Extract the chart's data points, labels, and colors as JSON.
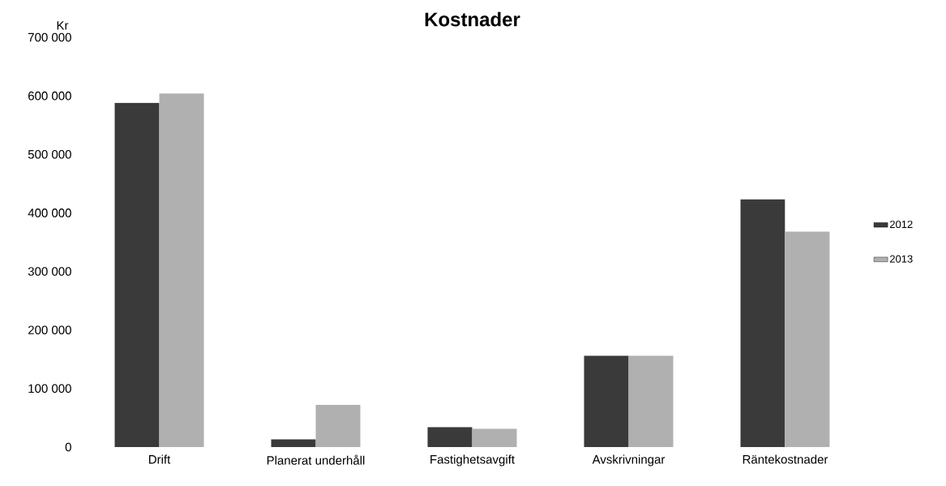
{
  "chart_data": {
    "type": "bar",
    "title": "Kostnader",
    "ylabel": "Kr",
    "categories": [
      "Drift",
      "Planerat underhåll",
      "Fastighetsavgift",
      "Avskrivningar",
      "Räntekostnader"
    ],
    "series": [
      {
        "name": "2012",
        "color": "#3a3a3a",
        "values": [
          588000,
          13000,
          34000,
          156000,
          423000
        ]
      },
      {
        "name": "2013",
        "color": "#b0b0b0",
        "values": [
          604000,
          72000,
          31000,
          156000,
          368000
        ]
      }
    ],
    "ylim": [
      0,
      700000
    ],
    "yticks": [
      {
        "value": 0,
        "label": "0"
      },
      {
        "value": 100000,
        "label": "100 000"
      },
      {
        "value": 200000,
        "label": "200 000"
      },
      {
        "value": 300000,
        "label": "300 000"
      },
      {
        "value": 400000,
        "label": "400 000"
      },
      {
        "value": 500000,
        "label": "500 000"
      },
      {
        "value": 600000,
        "label": "600 000"
      },
      {
        "value": 700000,
        "label": "700 000"
      }
    ],
    "grid": false,
    "legend": "right"
  }
}
